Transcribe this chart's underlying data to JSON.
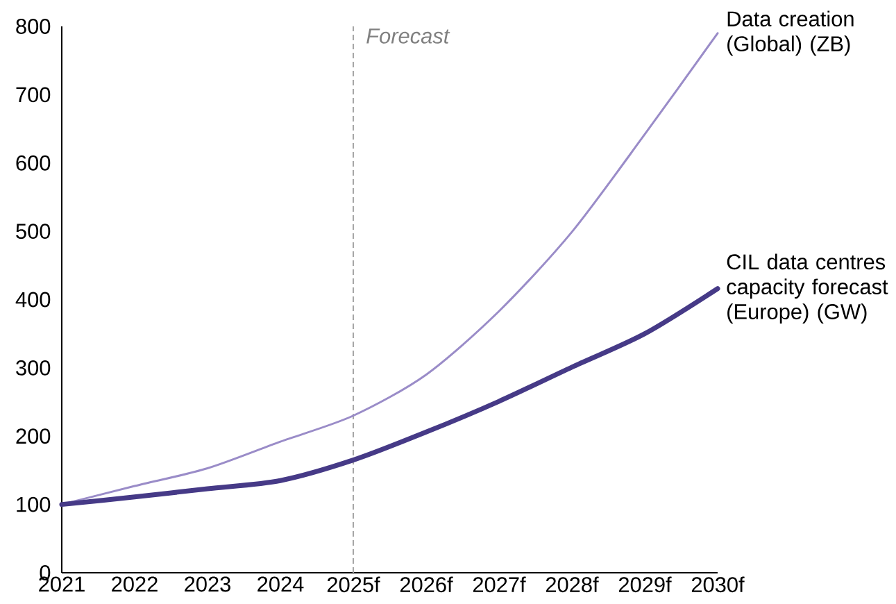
{
  "chart_data": {
    "type": "line",
    "categories": [
      "2021",
      "2022",
      "2023",
      "2024",
      "2025f",
      "2026f",
      "2027f",
      "2028f",
      "2029f",
      "2030f"
    ],
    "series": [
      {
        "name": "Data creation (Global) (ZB)",
        "color": "#9a8cc8",
        "values": [
          100,
          127,
          153,
          192,
          230,
          290,
          383,
          499,
          642,
          790
        ]
      },
      {
        "name": "CIL data centres capacity forecast (Europe) (GW)",
        "color": "#463a87",
        "values": [
          100,
          111,
          123,
          135,
          165,
          206,
          251,
          301,
          350,
          416
        ]
      }
    ],
    "ylim": [
      0,
      800
    ],
    "yticks": [
      0,
      100,
      200,
      300,
      400,
      500,
      600,
      700,
      800
    ],
    "ref_lines": [
      {
        "axis": "x",
        "value": "2025f",
        "label": "Forecast",
        "color": "#a6a6a6",
        "line_style": "dashed"
      }
    ]
  }
}
